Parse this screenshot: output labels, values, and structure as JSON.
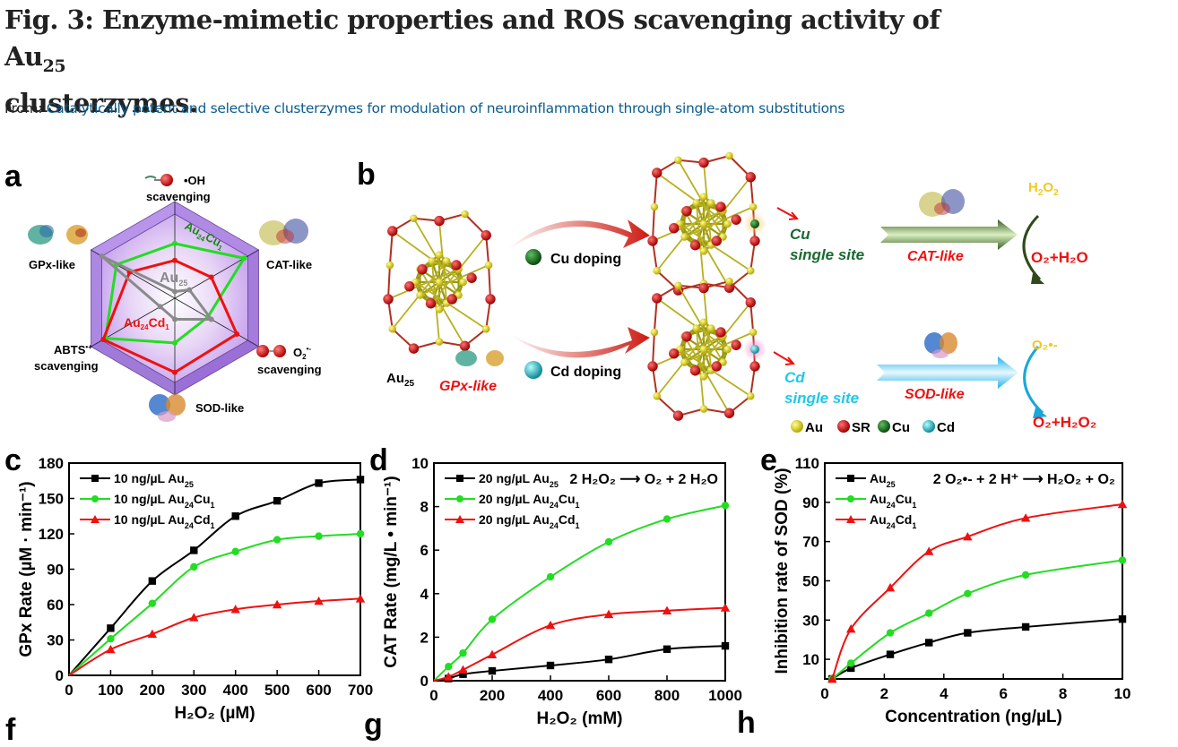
{
  "header": {
    "title_main": "Fig. 3: Enzyme-mimetic properties and ROS scavenging activity of Au",
    "title_sub": "25",
    "title_line2": "clusterzymes.",
    "from_label": "From: ",
    "from_link": "Catalytically potent and selective clusterzymes for modulation of neuroinflammation through single-atom substitutions"
  },
  "panels": {
    "a": {
      "letter": "a",
      "axes": [
        "•OH scavenging",
        "CAT-like",
        "O2•- scavenging",
        "SOD-like",
        "ABTS•+ scavenging",
        "GPx-like"
      ],
      "labels": {
        "oh": "•OH",
        "oh2": "scavenging",
        "cat": "CAT-like",
        "o2": "O",
        "o2sub": "2",
        "o2sup": "•-",
        "o22": "scavenging",
        "sod": "SOD-like",
        "abts": "ABTS",
        "abtssup": "•+",
        "abts2": "scavenging",
        "gpx": "GPx-like",
        "cu_label": "Au",
        "cu_sub1": "24",
        "cu_el": "Cu",
        "cu_sub2": "1",
        "au_label": "Au",
        "au_sub": "25",
        "cd_label": "Au",
        "cd_sub1": "24",
        "cd_el": "Cd",
        "cd_sub2": "1"
      },
      "colors": {
        "cu": "#22dd22",
        "cd": "#ee1111",
        "au": "#8a8a8a",
        "hex": "#b48ee6"
      }
    },
    "b": {
      "letter": "b",
      "au25": "Au",
      "au25_sub": "25",
      "gpx_like": "GPx-like",
      "cu_doping": "Cu doping",
      "cd_doping": "Cd doping",
      "cu_site1": "Cu",
      "cu_site2": "single site",
      "cd_site1": "Cd",
      "cd_site2": "single site",
      "cat_like": "CAT-like",
      "sod_like": "SOD-like",
      "h2o2_in": {
        "a": "H",
        "b": "2",
        "c": "O",
        "d": "2"
      },
      "cat_out": "O₂+H₂O",
      "o2_in": "O₂•-",
      "sod_out": "O₂+H₂O₂",
      "legend": [
        "Au",
        "SR",
        "Cu",
        "Cd"
      ],
      "legend_colors": [
        "#e8e020",
        "#dd1111",
        "#117a1e",
        "#22c8dd"
      ]
    }
  },
  "chart_data": [
    {
      "id": "c",
      "type": "line",
      "letter": "c",
      "title": "",
      "xlabel": "H₂O₂ (µM)",
      "ylabel": "GPx Rate (µM · min⁻¹)",
      "xlim": [
        0,
        700
      ],
      "ylim": [
        0,
        180
      ],
      "xticks": [
        0,
        100,
        200,
        300,
        400,
        500,
        600,
        700
      ],
      "yticks": [
        0,
        30,
        60,
        90,
        120,
        150,
        180
      ],
      "legend_position": "top-left",
      "annotation": "",
      "series": [
        {
          "name": "10 ng/µL Au25",
          "color": "#000000",
          "marker": "square",
          "x": [
            0,
            100,
            200,
            300,
            400,
            500,
            600,
            700
          ],
          "y": [
            0,
            40,
            80,
            106,
            135,
            148,
            163,
            166
          ]
        },
        {
          "name": "10 ng/µL Au24Cu1",
          "color": "#22dd22",
          "marker": "circle",
          "x": [
            0,
            100,
            200,
            300,
            400,
            500,
            600,
            700
          ],
          "y": [
            0,
            31,
            61,
            92,
            105,
            115,
            118,
            120
          ]
        },
        {
          "name": "10 ng/µL Au24Cd1",
          "color": "#ee1111",
          "marker": "triangle",
          "x": [
            0,
            100,
            200,
            300,
            400,
            500,
            600,
            700
          ],
          "y": [
            0,
            22,
            35,
            49,
            56,
            60,
            63,
            65
          ]
        }
      ],
      "legend_labels": [
        {
          "pre": "10 ng/µL Au",
          "s1": "25",
          "mid": "",
          "s2": ""
        },
        {
          "pre": "10 ng/µL Au",
          "s1": "24",
          "mid": "Cu",
          "s2": "1"
        },
        {
          "pre": "10 ng/µL Au",
          "s1": "24",
          "mid": "Cd",
          "s2": "1"
        }
      ]
    },
    {
      "id": "d",
      "type": "line",
      "letter": "d",
      "title": "",
      "xlabel": "H₂O₂ (mM)",
      "ylabel": "CAT Rate (mg/L • min⁻¹)",
      "xlim": [
        0,
        1000
      ],
      "ylim": [
        0,
        10
      ],
      "xticks": [
        0,
        200,
        400,
        600,
        800,
        1000
      ],
      "yticks": [
        0,
        2,
        4,
        6,
        8,
        10
      ],
      "legend_position": "top-left",
      "annotation": "2 H₂O₂ ⟶ O₂ + 2 H₂O",
      "series": [
        {
          "name": "20 ng/µL Au25",
          "color": "#000000",
          "marker": "square",
          "x": [
            0,
            50,
            100,
            200,
            400,
            600,
            800,
            1000
          ],
          "y": [
            0,
            0.1,
            0.3,
            0.45,
            0.7,
            0.98,
            1.45,
            1.6
          ]
        },
        {
          "name": "20 ng/µL Au24Cu1",
          "color": "#22dd22",
          "marker": "circle",
          "x": [
            0,
            50,
            100,
            200,
            400,
            600,
            800,
            1000
          ],
          "y": [
            0,
            0.65,
            1.27,
            2.82,
            4.77,
            6.38,
            7.43,
            8.05
          ]
        },
        {
          "name": "20 ng/µL Au24Cd1",
          "color": "#ee1111",
          "marker": "triangle",
          "x": [
            0,
            50,
            100,
            200,
            400,
            600,
            800,
            1000
          ],
          "y": [
            0,
            0.18,
            0.5,
            1.2,
            2.55,
            3.05,
            3.22,
            3.35
          ]
        }
      ],
      "legend_labels": [
        {
          "pre": "20 ng/µL Au",
          "s1": "25",
          "mid": "",
          "s2": ""
        },
        {
          "pre": "20 ng/µL Au",
          "s1": "24",
          "mid": "Cu",
          "s2": "1"
        },
        {
          "pre": "20 ng/µL Au",
          "s1": "24",
          "mid": "Cd",
          "s2": "1"
        }
      ]
    },
    {
      "id": "e",
      "type": "line",
      "letter": "e",
      "title": "",
      "xlabel": "Concentration (ng/µL)",
      "ylabel": "Inhibition rate of SOD (%)",
      "xlim": [
        0,
        10
      ],
      "ylim": [
        0,
        110
      ],
      "xticks": [
        0,
        2,
        4,
        6,
        8,
        10
      ],
      "yticks": [
        10,
        30,
        50,
        70,
        90,
        110
      ],
      "legend_position": "top-left",
      "annotation": "2 O₂•- + 2 H⁺ ⟶ H₂O₂ + O₂",
      "series": [
        {
          "name": "Au25",
          "color": "#000000",
          "marker": "square",
          "x": [
            0.25,
            0.88,
            2.2,
            3.5,
            4.8,
            6.75,
            10
          ],
          "y": [
            0,
            5.5,
            12.5,
            18.5,
            23.5,
            26.5,
            30.5
          ]
        },
        {
          "name": "Au24Cu1",
          "color": "#22dd22",
          "marker": "circle",
          "x": [
            0.25,
            0.88,
            2.2,
            3.5,
            4.8,
            6.75,
            10
          ],
          "y": [
            0,
            8,
            23.5,
            33.5,
            43.5,
            53,
            60.5
          ]
        },
        {
          "name": "Au24Cd1",
          "color": "#ee1111",
          "marker": "triangle",
          "x": [
            0.25,
            0.88,
            2.2,
            3.5,
            4.8,
            6.75,
            10
          ],
          "y": [
            0,
            25.5,
            46.5,
            65,
            72.5,
            82,
            89
          ]
        }
      ],
      "legend_labels": [
        {
          "pre": "Au",
          "s1": "25",
          "mid": "",
          "s2": ""
        },
        {
          "pre": "Au",
          "s1": "24",
          "mid": "Cu",
          "s2": "1"
        },
        {
          "pre": "Au",
          "s1": "24",
          "mid": "Cd",
          "s2": "1"
        }
      ]
    },
    {
      "id": "a",
      "type": "radar",
      "axes": [
        "•OH scavenging",
        "CAT-like",
        "O2•- scavenging",
        "SOD-like",
        "ABTS•+ scavenging",
        "GPx-like"
      ],
      "range": [
        0,
        1
      ],
      "series": [
        {
          "name": "Au24Cu1",
          "color": "#22dd22",
          "values": [
            0.65,
            0.95,
            0.45,
            0.53,
            0.95,
            0.8
          ]
        },
        {
          "name": "Au24Cd1",
          "color": "#ee1111",
          "values": [
            0.45,
            0.5,
            0.85,
            0.88,
            0.98,
            0.62
          ]
        },
        {
          "name": "Au25",
          "color": "#8a8a8a",
          "values": [
            0.08,
            0.2,
            0.5,
            0.25,
            0.2,
            1.0
          ]
        }
      ]
    }
  ],
  "bottom_letters": [
    "f",
    "g",
    "h"
  ]
}
